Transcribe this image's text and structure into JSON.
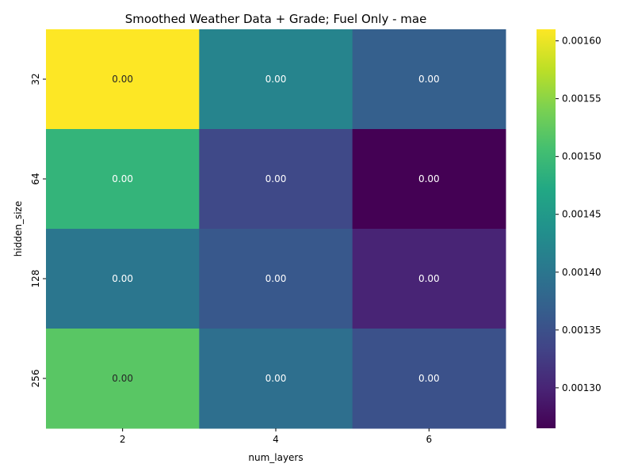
{
  "chart_data": {
    "type": "heatmap",
    "title": "Smoothed Weather Data + Grade; Fuel Only - mae",
    "xlabel": "num_layers",
    "ylabel": "hidden_size",
    "x_categories": [
      "2",
      "4",
      "6"
    ],
    "y_categories": [
      "32",
      "64",
      "128",
      "256"
    ],
    "values": [
      [
        0.00161,
        0.00142,
        0.00137
      ],
      [
        0.00149,
        0.00134,
        0.001265
      ],
      [
        0.0014,
        0.00136,
        0.0013
      ],
      [
        0.00152,
        0.00139,
        0.00135
      ]
    ],
    "cell_labels": [
      [
        "0.00",
        "0.00",
        "0.00"
      ],
      [
        "0.00",
        "0.00",
        "0.00"
      ],
      [
        "0.00",
        "0.00",
        "0.00"
      ],
      [
        "0.00",
        "0.00",
        "0.00"
      ]
    ],
    "colormap": "viridis",
    "colorbar": {
      "min": 0.001265,
      "max": 0.00161,
      "ticks": [
        0.0013,
        0.00135,
        0.0014,
        0.00145,
        0.0015,
        0.00155,
        0.0016
      ],
      "tick_labels": [
        "0.00130",
        "0.00135",
        "0.00140",
        "0.00145",
        "0.00150",
        "0.00155",
        "0.00160"
      ]
    }
  }
}
